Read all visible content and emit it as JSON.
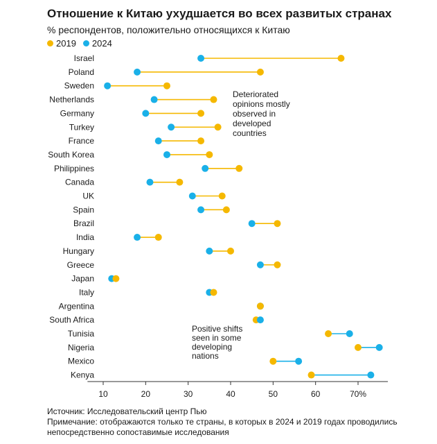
{
  "header": {
    "title": "Отношение к Китаю ухудшается во всех развитых странах",
    "subtitle": "% респондентов, положительно относящихся к Китаю"
  },
  "legend": {
    "items": [
      {
        "label": "2019",
        "color": "#f5b800"
      },
      {
        "label": "2024",
        "color": "#1ab0e8"
      }
    ]
  },
  "annotations": {
    "deteriorated": [
      "Deteriorated",
      "opinions mostly",
      "observed in",
      "developed",
      "countries"
    ],
    "positive": [
      "Positive shifts",
      "seen in some",
      "developing",
      "nations"
    ]
  },
  "footer": {
    "source": "Источник: Исследовательский центр Пью",
    "note_line1": "Примечание: отображаются только те страны, в которых в 2024 и 2019 годах проводились",
    "note_line2": "непосредственно сопоставимые исследования"
  },
  "chart_data": {
    "type": "dumbbell",
    "title": "Отношение к Китаю ухудшается во всех развитых странах",
    "subtitle": "% респондентов, положительно относящихся к Китаю",
    "xlim": [
      5,
      78
    ],
    "x_ticks": [
      10,
      20,
      30,
      40,
      50,
      60,
      70
    ],
    "x_tick_labels": [
      "10",
      "20",
      "30",
      "40",
      "50",
      "60",
      "70%"
    ],
    "grid": false,
    "legend_position": "top-left",
    "colors": {
      "2019": "#f5b800",
      "2024": "#1ab0e8"
    },
    "categories": [
      "Israel",
      "Poland",
      "Sweden",
      "Netherlands",
      "Germany",
      "Turkey",
      "France",
      "South Korea",
      "Philippines",
      "Canada",
      "UK",
      "Spain",
      "Brazil",
      "India",
      "Hungary",
      "Greece",
      "Japan",
      "Italy",
      "Argentina",
      "South Africa",
      "Tunisia",
      "Nigeria",
      "Mexico",
      "Kenya"
    ],
    "series": [
      {
        "name": "2019",
        "values": [
          66,
          47,
          25,
          36,
          33,
          37,
          33,
          35,
          42,
          28,
          38,
          39,
          51,
          23,
          40,
          51,
          13,
          36,
          47,
          46,
          63,
          70,
          50,
          59
        ]
      },
      {
        "name": "2024",
        "values": [
          33,
          18,
          11,
          22,
          20,
          26,
          23,
          25,
          34,
          21,
          31,
          33,
          45,
          18,
          35,
          47,
          12,
          35,
          47,
          47,
          68,
          75,
          56,
          73
        ]
      }
    ]
  }
}
